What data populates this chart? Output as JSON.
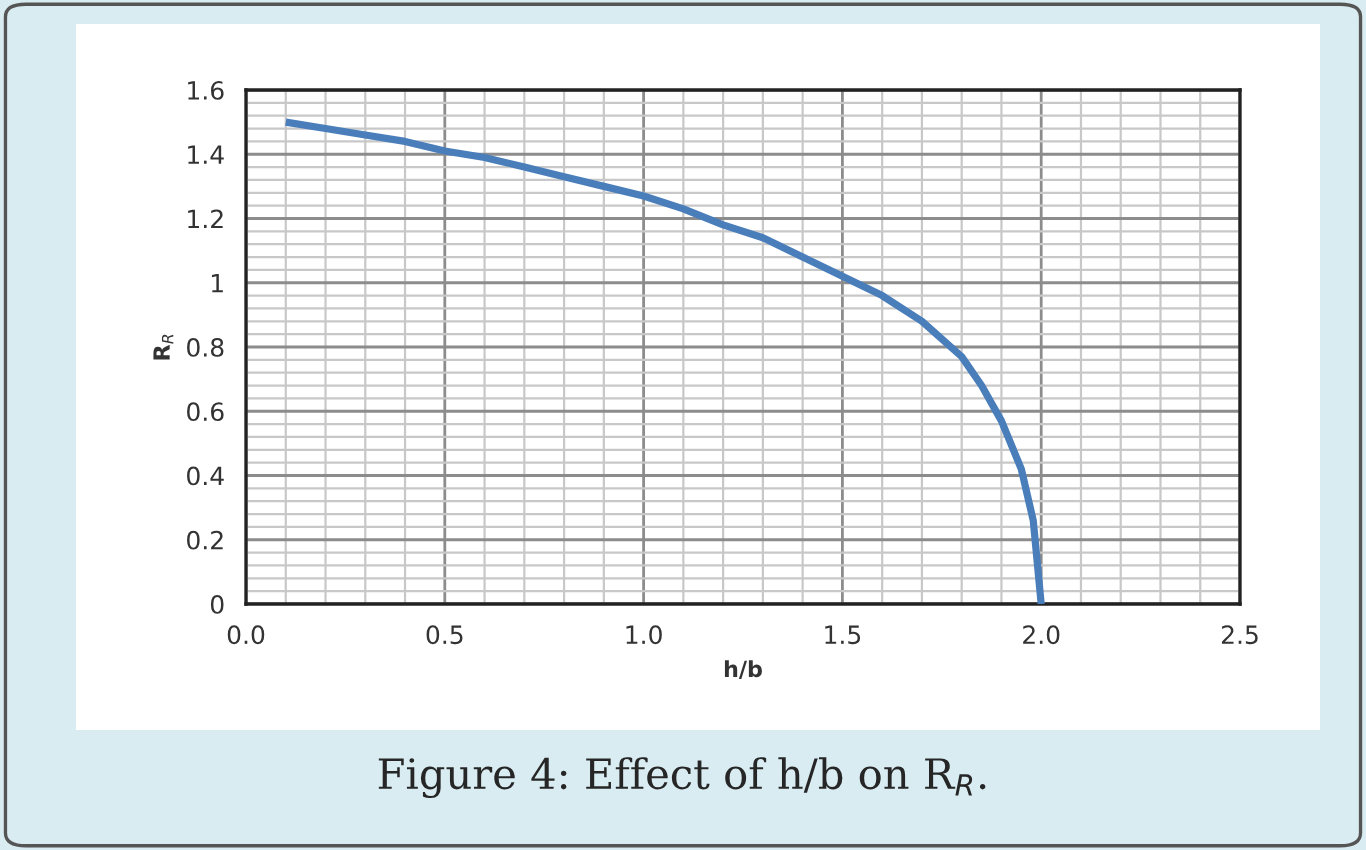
{
  "chart_data": {
    "type": "line",
    "xlabel": "h/b",
    "ylabel": "R$_{R}$",
    "x": [
      0.1,
      0.2,
      0.3,
      0.4,
      0.5,
      0.6,
      0.7,
      0.8,
      0.9,
      1.0,
      1.1,
      1.2,
      1.3,
      1.4,
      1.5,
      1.6,
      1.7,
      1.8,
      1.85,
      1.9,
      1.95,
      1.98,
      2.0
    ],
    "series": [
      {
        "color": "#4a7ebb",
        "values": [
          1.5,
          1.48,
          1.46,
          1.44,
          1.41,
          1.39,
          1.36,
          1.33,
          1.3,
          1.27,
          1.23,
          1.18,
          1.14,
          1.08,
          1.02,
          0.96,
          0.88,
          0.77,
          0.68,
          0.57,
          0.42,
          0.26,
          0
        ]
      }
    ],
    "xlim": [
      0,
      2.5
    ],
    "xticks": [
      {
        "value": 0,
        "label": "0.0"
      },
      {
        "value": 0.5,
        "label": "0.5"
      },
      {
        "value": 1,
        "label": "1.0"
      },
      {
        "value": 1.5,
        "label": "1.5"
      },
      {
        "value": 2,
        "label": "2.0"
      },
      {
        "value": 2.5,
        "label": "2.5"
      }
    ],
    "ylim": [
      0,
      1.6
    ],
    "yticks": [
      0,
      0.2,
      0.4,
      0.6,
      0.8,
      1,
      1.2,
      1.4,
      1.6
    ],
    "grid": true,
    "marker": "none",
    "line_style": "solid",
    "annotations": [
      "Figure 4: Effect of h/b on R$_{R}$."
    ]
  }
}
